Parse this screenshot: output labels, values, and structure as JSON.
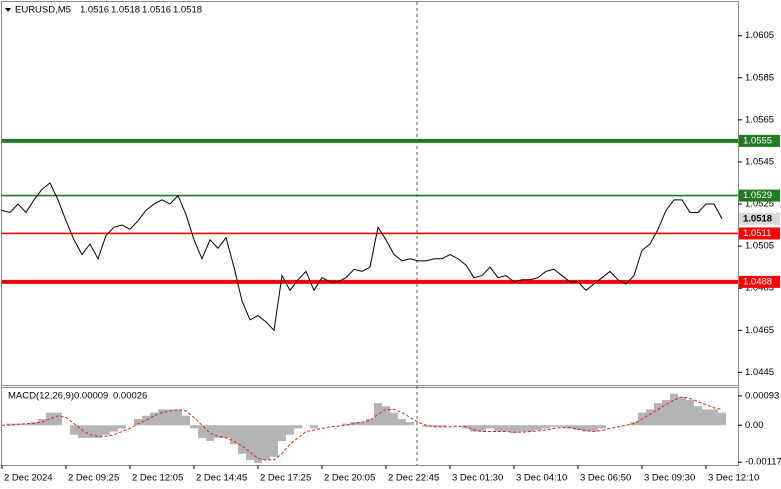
{
  "chart_data": [
    {
      "type": "line",
      "symbol": "EURUSD,M5",
      "ohlc": [
        1.0516,
        1.0518,
        1.0516,
        1.0518
      ],
      "x": [
        0,
        4,
        8,
        12,
        16,
        20,
        24,
        28,
        32,
        36,
        40,
        44,
        48,
        52,
        56,
        60,
        64,
        68,
        72,
        76,
        80,
        84,
        88,
        92,
        96,
        100,
        104,
        108,
        112,
        116,
        120,
        124,
        128,
        132,
        136,
        140,
        144,
        148,
        152,
        156,
        160,
        164,
        168,
        172,
        176,
        180,
        184,
        188,
        192,
        196,
        200,
        204,
        208,
        212,
        216,
        220,
        224,
        228,
        232,
        236,
        240,
        244,
        248,
        252,
        256,
        260,
        264,
        268,
        272,
        276,
        280,
        284,
        288,
        292,
        296,
        300,
        304,
        308,
        312,
        316,
        320,
        324,
        328,
        332,
        336,
        340,
        344,
        348,
        352,
        356,
        360
      ],
      "series": [
        {
          "color": "#000000",
          "values": [
            1.0522,
            1.0521,
            1.0525,
            1.0521,
            1.0527,
            1.0532,
            1.0535,
            1.0527,
            1.0517,
            1.0508,
            1.0501,
            1.0506,
            1.0499,
            1.051,
            1.0514,
            1.0515,
            1.0513,
            1.0517,
            1.0522,
            1.0525,
            1.0527,
            1.0525,
            1.0529,
            1.052,
            1.0508,
            1.0499,
            1.0508,
            1.0504,
            1.0509,
            1.0495,
            1.0479,
            1.047,
            1.0472,
            1.0469,
            1.0465,
            1.0491,
            1.0484,
            1.0489,
            1.0493,
            1.0484,
            1.049,
            1.0488,
            1.0488,
            1.049,
            1.0494,
            1.0493,
            1.0495,
            1.0514,
            1.0508,
            1.0501,
            1.0498,
            1.0499,
            1.0498,
            1.0498,
            1.0499,
            1.0499,
            1.0501,
            1.0499,
            1.0496,
            1.049,
            1.0491,
            1.0495,
            1.049,
            1.0491,
            1.0488,
            1.0489,
            1.0489,
            1.049,
            1.0493,
            1.0494,
            1.0491,
            1.0488,
            1.0488,
            1.0484,
            1.0487,
            1.049,
            1.0493,
            1.0489,
            1.0487,
            1.0491,
            1.0503,
            1.0506,
            1.0513,
            1.0522,
            1.0527,
            1.0527,
            1.0521,
            1.0521,
            1.0525,
            1.0525,
            1.0518
          ]
        }
      ],
      "xlim": [
        0,
        368
      ],
      "xticks": [
        {
          "value": 0,
          "label": "2 Dec 2024"
        },
        {
          "value": 32,
          "label": "2 Dec 09:25"
        },
        {
          "value": 64,
          "label": "2 Dec 12:05"
        },
        {
          "value": 96,
          "label": "2 Dec 14:45"
        },
        {
          "value": 128,
          "label": "2 Dec 17:25"
        },
        {
          "value": 160,
          "label": "2 Dec 20:05"
        },
        {
          "value": 192,
          "label": "2 Dec 22:45"
        },
        {
          "value": 224,
          "label": "3 Dec 01:30"
        },
        {
          "value": 256,
          "label": "3 Dec 04:10"
        },
        {
          "value": 288,
          "label": "3 Dec 06:50"
        },
        {
          "value": 320,
          "label": "3 Dec 09:30"
        },
        {
          "value": 352,
          "label": "3 Dec 12:10"
        }
      ],
      "ylim": [
        1.0439,
        1.0621
      ],
      "yticks": [
        1.0445,
        1.0465,
        1.0485,
        1.0505,
        1.0525,
        1.0545,
        1.0565,
        1.0585,
        1.0605
      ],
      "levels": [
        {
          "value": 1.0555,
          "color": "#1e7b1e",
          "style": "thick"
        },
        {
          "value": 1.0529,
          "color": "#1e7b1e",
          "style": "thin"
        },
        {
          "value": 1.0511,
          "color": "#ff0000",
          "style": "thin"
        },
        {
          "value": 1.0488,
          "color": "#ff0000",
          "style": "thick"
        }
      ],
      "last_price": 1.0518,
      "grid": false
    },
    {
      "type": "macd",
      "title": "MACD(12,26,9)",
      "readings": [
        9e-05,
        0.00026
      ],
      "series": [
        {
          "kind": "histogram",
          "color": "#b4b4b4",
          "values": [
            0,
            5e-05,
            5e-05,
            5e-05,
            0.0001,
            0.0002,
            0.0004,
            0.0004,
            0,
            -0.0003,
            -0.0004,
            -0.0004,
            -0.0004,
            -0.0003,
            -0.0002,
            -0.0001,
            0,
            0.0002,
            0.0003,
            0.0004,
            0.0005,
            0.0005,
            0.0005,
            0.0003,
            -0.0001,
            -0.0004,
            -0.0005,
            -0.0004,
            -0.0004,
            -0.0006,
            -0.0009,
            -0.0011,
            -0.0012,
            -0.0011,
            -0.001,
            -0.0005,
            -0.0003,
            -0.0001,
            0,
            -0.0001,
            0,
            0,
            0,
            5e-05,
            0.0001,
            0.0001,
            0.0002,
            0.0007,
            0.0006,
            0.0004,
            0.0002,
            0.0001,
            0,
            -5e-05,
            -5e-05,
            -5e-05,
            0,
            0,
            -0.0001,
            -0.0002,
            -0.0002,
            -0.0001,
            -0.0002,
            -0.0002,
            -0.00025,
            -0.0002,
            -0.0002,
            -0.00015,
            -0.0001,
            -5e-05,
            -5e-05,
            -0.0001,
            -0.00015,
            -0.0002,
            -0.0002,
            -0.0001,
            0,
            0,
            0,
            0.0001,
            0.0004,
            0.0005,
            0.0007,
            0.0008,
            0.001,
            0.0009,
            0.0008,
            0.0006,
            0.0005,
            0.0005,
            0.0004
          ]
        },
        {
          "kind": "signal",
          "color": "#e02020",
          "values": [
            0,
            0,
            3e-05,
            5e-05,
            6e-05,
            0.0001,
            0.0002,
            0.0003,
            0.00025,
            5e-05,
            -0.00015,
            -0.0003,
            -0.00035,
            -0.00035,
            -0.0003,
            -0.0002,
            -0.0001,
            5e-05,
            0.00015,
            0.0003,
            0.0004,
            0.00045,
            0.0005,
            0.00045,
            0.00025,
            0,
            -0.00025,
            -0.00035,
            -0.0004,
            -0.0005,
            -0.00065,
            -0.00085,
            -0.00105,
            -0.0011,
            -0.0011,
            -0.0009,
            -0.0006,
            -0.0004,
            -0.0002,
            -0.00015,
            -0.0001,
            -5e-05,
            -3e-05,
            0,
            5e-05,
            0.0001,
            0.00015,
            0.00035,
            0.0005,
            0.0005,
            0.0004,
            0.00025,
            0.0001,
            0,
            -5e-05,
            -5e-05,
            -5e-05,
            -3e-05,
            -5e-05,
            -0.00015,
            -0.0002,
            -0.0002,
            -0.0002,
            -0.0002,
            -0.00022,
            -0.00022,
            -0.0002,
            -0.00018,
            -0.00015,
            -0.0001,
            -7e-05,
            -8e-05,
            -0.00012,
            -0.00017,
            -0.0002,
            -0.00017,
            -0.0001,
            -5e-05,
            0,
            5e-05,
            0.0002,
            0.00035,
            0.0005,
            0.00065,
            0.0008,
            0.0009,
            0.00085,
            0.00075,
            0.00065,
            0.00055,
            0.0005
          ]
        }
      ],
      "ylim": [
        -0.00126,
        0.00118
      ],
      "yticks": [
        -0.00117,
        {
          "value": 0,
          "label": "0.00"
        },
        0.00093
      ]
    }
  ]
}
